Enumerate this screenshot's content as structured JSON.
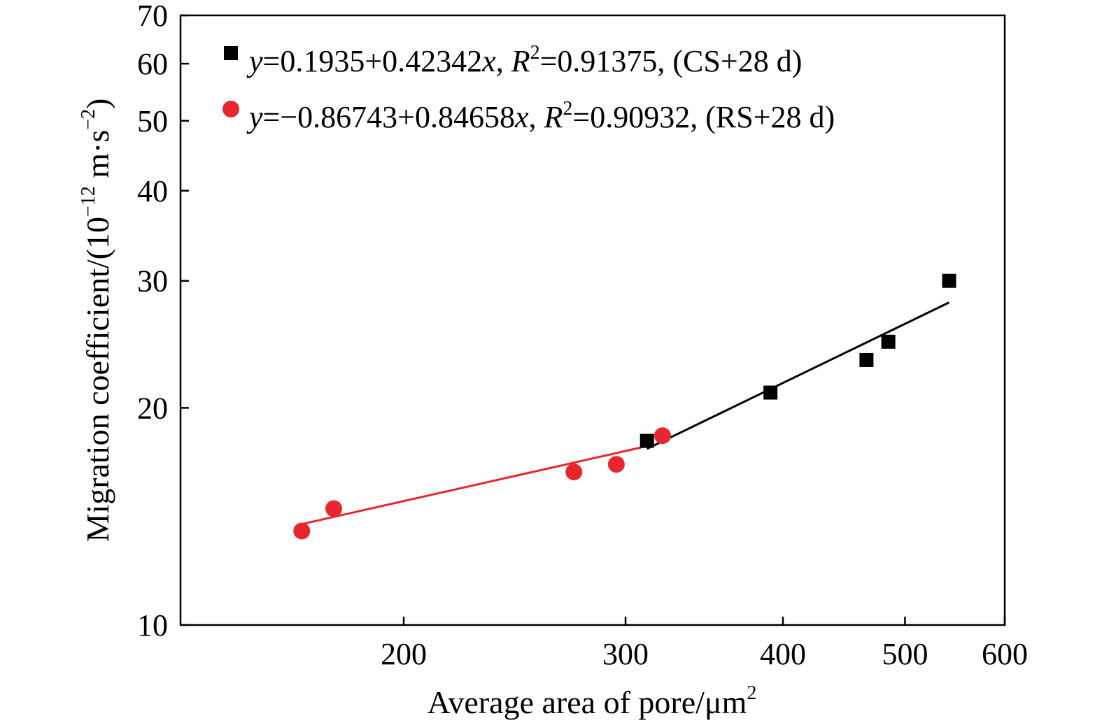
{
  "chart_data": {
    "type": "scatter",
    "title": "",
    "xlabel": "Average area of pore/μm",
    "xlabel_sup": "2",
    "ylabel_main": "Migration coefficient/(10",
    "ylabel_sup1": "−12",
    "ylabel_mid": " m·s",
    "ylabel_sup2": "−2",
    "ylabel_end": ")",
    "xscale": "log",
    "yscale": "log",
    "xlim": [
      133,
      600
    ],
    "ylim": [
      10,
      70
    ],
    "x_ticks": [
      200,
      300,
      400,
      500,
      600
    ],
    "y_ticks": [
      10,
      20,
      30,
      40,
      50,
      60,
      70
    ],
    "grid": false,
    "legend_position": "top-left",
    "series": [
      {
        "name": "(CS+28 d)",
        "marker": "square",
        "color": "#000000",
        "eq_y": "y",
        "eq_mid": "=0.1935+0.42342",
        "eq_x": "x",
        "eq_sep": ", ",
        "eq_R": "R",
        "eq_R_sup": "2",
        "eq_tail": "=0.91375, (CS+28 d)",
        "points": [
          [
            312,
            18.0
          ],
          [
            391,
            21.0
          ],
          [
            466,
            23.3
          ],
          [
            485,
            24.7
          ],
          [
            542,
            30.0
          ]
        ],
        "fit": [
          [
            312,
            17.55
          ],
          [
            542,
            28.0
          ]
        ]
      },
      {
        "name": "(RS+28 d)",
        "marker": "circle",
        "color": "#e8262d",
        "eq_y": "y",
        "eq_mid": "=−0.86743+0.84658",
        "eq_x": "x",
        "eq_sep": ", ",
        "eq_R": "R",
        "eq_R_sup": "2",
        "eq_tail": "=0.90932, (RS+28 d)",
        "points": [
          [
            166,
            13.5
          ],
          [
            176,
            14.5
          ],
          [
            273,
            16.3
          ],
          [
            295,
            16.7
          ],
          [
            321,
            18.3
          ]
        ],
        "fit": [
          [
            166,
            13.8
          ],
          [
            312,
            17.7
          ]
        ]
      }
    ]
  }
}
